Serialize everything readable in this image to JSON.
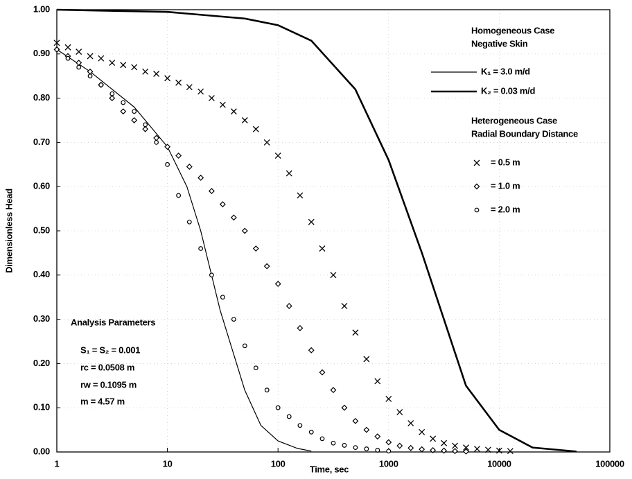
{
  "chart_data": {
    "type": "line",
    "x_label": "Time, sec",
    "y_label": "Dimensionless Head",
    "xscale": "log",
    "xlim": [
      1,
      100000
    ],
    "xticks": [
      1,
      10,
      100,
      1000,
      10000,
      100000
    ],
    "ylim": [
      0,
      1
    ],
    "yticks": [
      {
        "value": 0,
        "label": "0.00"
      },
      {
        "value": 0.1,
        "label": "0.10"
      },
      {
        "value": 0.2,
        "label": "0.20"
      },
      {
        "value": 0.3,
        "label": "0.30"
      },
      {
        "value": 0.4,
        "label": "0.40"
      },
      {
        "value": 0.5,
        "label": "0.50"
      },
      {
        "value": 0.6,
        "label": "0.60"
      },
      {
        "value": 0.7,
        "label": "0.70"
      },
      {
        "value": 0.8,
        "label": "0.80"
      },
      {
        "value": 0.9,
        "label": "0.90"
      },
      {
        "value": 1,
        "label": "1.00"
      }
    ],
    "grid": true,
    "legend_titles": [
      [
        "Homogeneous Case",
        "Negative Skin"
      ],
      [
        "Heterogeneous Case",
        "Radial Boundary Distance"
      ]
    ],
    "annotation_title": "Analysis Parameters",
    "annotations": [
      "S₁ =  S₂  =  0.001",
      "rc  =  0.0508 m",
      "rw  =  0.1095 m",
      "m   =  4.57 m"
    ],
    "series": [
      {
        "name": "K₁ =  3.0 m/d",
        "style": "line",
        "width": 1.2,
        "color": "#000000",
        "group": 0,
        "x": [
          1,
          2,
          5,
          10,
          15,
          20,
          30,
          50,
          70,
          100,
          150,
          200
        ],
        "values": [
          0.91,
          0.86,
          0.78,
          0.69,
          0.6,
          0.5,
          0.32,
          0.14,
          0.06,
          0.025,
          0.008,
          0.002
        ]
      },
      {
        "name": "K₂ =  0.03 m/d",
        "style": "line",
        "width": 2.6,
        "color": "#000000",
        "group": 0,
        "x": [
          1,
          10,
          50,
          100,
          200,
          500,
          1000,
          2000,
          5000,
          10000,
          20000,
          50000
        ],
        "values": [
          1.0,
          0.995,
          0.98,
          0.965,
          0.93,
          0.82,
          0.66,
          0.45,
          0.15,
          0.05,
          0.01,
          0.001
        ]
      },
      {
        "name": "=  0.5 m",
        "style": "marker",
        "marker": "cross",
        "color": "#000000",
        "group": 1,
        "x": [
          1,
          1.26,
          1.58,
          2,
          2.51,
          3.16,
          3.98,
          5.01,
          6.31,
          7.94,
          10,
          12.6,
          15.8,
          20,
          25.1,
          31.6,
          39.8,
          50.1,
          63.1,
          79.4,
          100,
          126,
          158,
          200,
          251,
          316,
          398,
          501,
          631,
          794,
          1000,
          1259,
          1585,
          1995,
          2512,
          3162,
          3981,
          5012,
          6310,
          7943,
          10000,
          12589
        ],
        "values": [
          0.925,
          0.915,
          0.905,
          0.895,
          0.89,
          0.88,
          0.875,
          0.87,
          0.86,
          0.855,
          0.845,
          0.835,
          0.825,
          0.815,
          0.8,
          0.785,
          0.77,
          0.75,
          0.73,
          0.7,
          0.67,
          0.63,
          0.58,
          0.52,
          0.46,
          0.4,
          0.33,
          0.27,
          0.21,
          0.16,
          0.12,
          0.09,
          0.065,
          0.045,
          0.03,
          0.02,
          0.014,
          0.01,
          0.007,
          0.005,
          0.003,
          0.002
        ]
      },
      {
        "name": "=  1.0 m",
        "style": "marker",
        "marker": "diamond",
        "color": "#000000",
        "group": 1,
        "x": [
          1,
          1.26,
          1.58,
          2,
          2.51,
          3.16,
          3.98,
          5.01,
          6.31,
          7.94,
          10,
          12.6,
          15.8,
          20,
          25.1,
          31.6,
          39.8,
          50.1,
          63.1,
          79.4,
          100,
          126,
          158,
          200,
          251,
          316,
          398,
          501,
          631,
          794,
          1000,
          1259,
          1585,
          1995,
          2512,
          3162,
          3981,
          5012
        ],
        "values": [
          0.91,
          0.895,
          0.88,
          0.86,
          0.83,
          0.8,
          0.77,
          0.75,
          0.73,
          0.71,
          0.69,
          0.67,
          0.645,
          0.62,
          0.59,
          0.56,
          0.53,
          0.5,
          0.46,
          0.42,
          0.38,
          0.33,
          0.28,
          0.23,
          0.18,
          0.14,
          0.1,
          0.07,
          0.05,
          0.035,
          0.022,
          0.014,
          0.009,
          0.006,
          0.004,
          0.003,
          0.002,
          0.001
        ]
      },
      {
        "name": "=  2.0 m",
        "style": "marker",
        "marker": "circle",
        "color": "#000000",
        "group": 1,
        "x": [
          1,
          1.26,
          1.58,
          2,
          2.51,
          3.16,
          3.98,
          5.01,
          6.31,
          7.94,
          10,
          12.6,
          15.8,
          20,
          25.1,
          31.6,
          39.8,
          50.1,
          63.1,
          79.4,
          100,
          126,
          158,
          200,
          251,
          316,
          398,
          501,
          631,
          794,
          1000
        ],
        "values": [
          0.91,
          0.89,
          0.87,
          0.85,
          0.83,
          0.81,
          0.79,
          0.77,
          0.74,
          0.7,
          0.65,
          0.58,
          0.52,
          0.46,
          0.4,
          0.35,
          0.3,
          0.24,
          0.19,
          0.14,
          0.1,
          0.08,
          0.06,
          0.045,
          0.03,
          0.02,
          0.015,
          0.01,
          0.007,
          0.004,
          0.002
        ]
      }
    ]
  }
}
